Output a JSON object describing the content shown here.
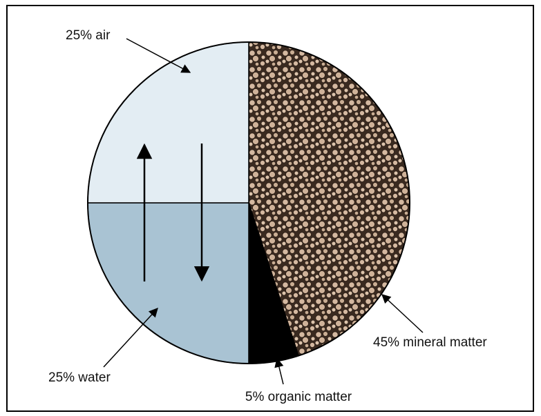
{
  "chart_data": {
    "type": "pie",
    "values": [
      45,
      5,
      25,
      25
    ],
    "value_labels": [
      "45% mineral matter",
      "5% organic matter",
      "25% water",
      "25% air"
    ],
    "colors": [
      "#c9ad93",
      "#000000",
      "#a9c3d3",
      "#e3edf3"
    ]
  }
}
